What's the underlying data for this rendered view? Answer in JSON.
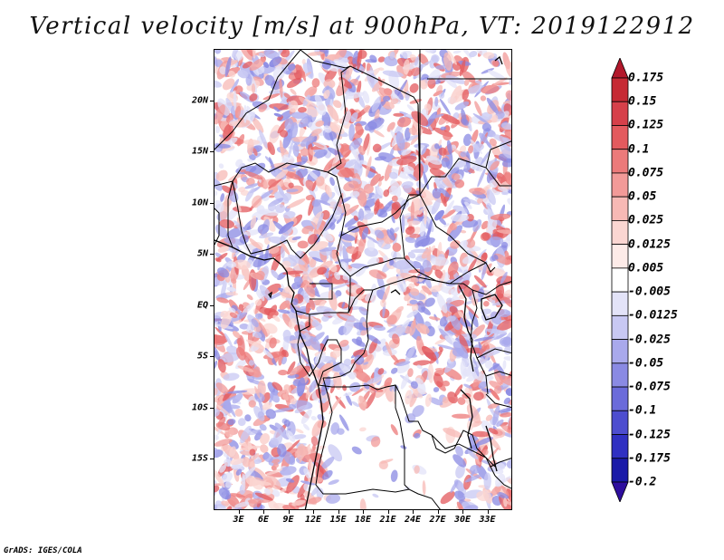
{
  "title": "Vertical velocity [m/s] at 900hPa, VT: 2019122912",
  "footer": "GrADS: IGES/COLA",
  "map": {
    "lon_range": [
      0,
      36
    ],
    "lat_range": [
      -20,
      25
    ],
    "lat_labels": [
      "20N",
      "15N",
      "10N",
      "5N",
      "EQ",
      "5S",
      "10S",
      "15S"
    ],
    "lat_values": [
      20,
      15,
      10,
      5,
      0,
      -5,
      -10,
      -15
    ],
    "lon_labels": [
      "3E",
      "6E",
      "9E",
      "12E",
      "15E",
      "18E",
      "21E",
      "24E",
      "27E",
      "30E",
      "33E"
    ],
    "lon_values": [
      3,
      6,
      9,
      12,
      15,
      18,
      21,
      24,
      27,
      30,
      33
    ]
  },
  "colorbar": {
    "labels": [
      "0.175",
      "0.15",
      "0.125",
      "0.1",
      "0.075",
      "0.05",
      "0.025",
      "0.0125",
      "0.005",
      "-0.005",
      "-0.0125",
      "-0.025",
      "-0.05",
      "-0.075",
      "-0.1",
      "-0.125",
      "-0.175",
      "-0.2"
    ],
    "colors": [
      "#b2182b",
      "#c62a34",
      "#d6404a",
      "#e35a5e",
      "#ec7a7a",
      "#f29a98",
      "#f7b9b5",
      "#fbd6d2",
      "#fdebe8",
      "#ffffff",
      "#e3e3f8",
      "#c8c8f3",
      "#a9a9ec",
      "#8a8ae3",
      "#6b6bda",
      "#4d4dcf",
      "#3030c2",
      "#1a1aa8",
      "#2e0e9e"
    ]
  }
}
